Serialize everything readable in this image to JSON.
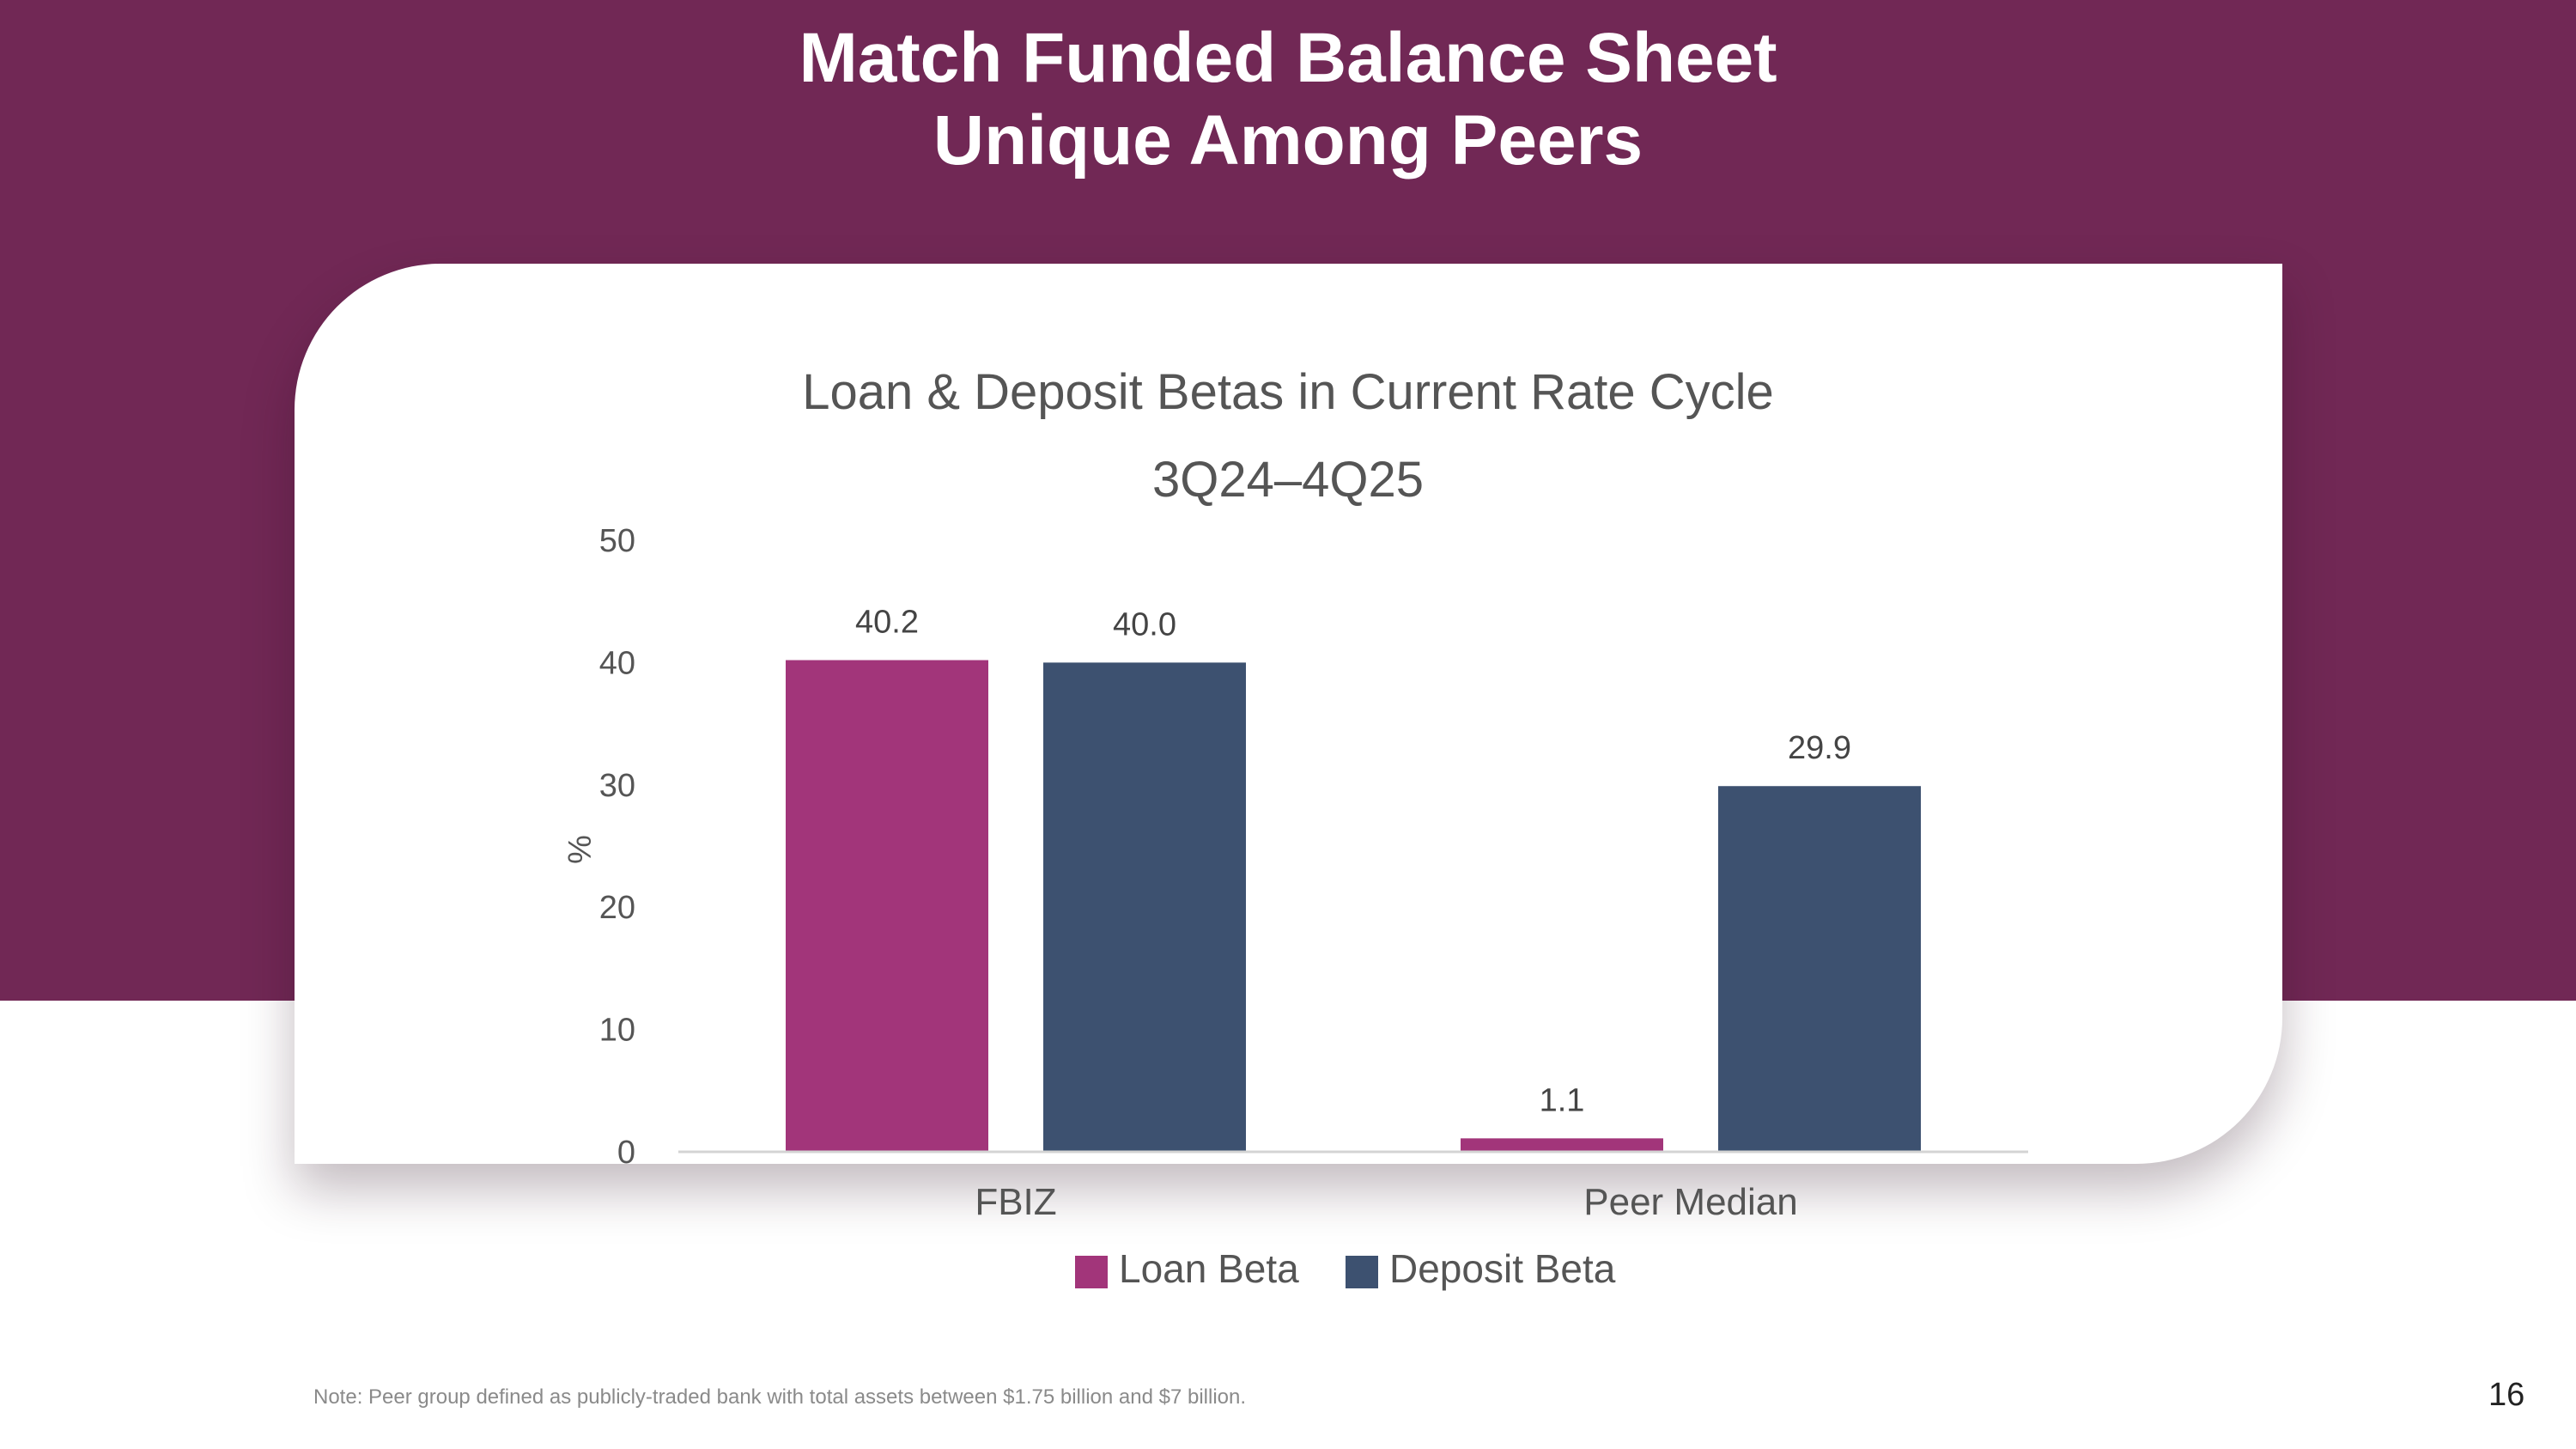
{
  "slide": {
    "title_line1": "Match Funded Balance Sheet",
    "title_line2": "Unique Among Peers",
    "note": "Note: Peer group defined as publicly-traded bank with total assets between $1.75 billion and $7 billion.",
    "page_number": "16",
    "background_color": "#712855"
  },
  "chart_data": {
    "type": "bar",
    "title": "Loan & Deposit Betas in Current Rate Cycle",
    "subtitle": "3Q24–4Q25",
    "ylabel": "%",
    "xlabel": "",
    "categories": [
      "FBIZ",
      "Peer Median"
    ],
    "series": [
      {
        "name": "Loan Beta",
        "color": "#A2357A",
        "values": [
          40.2,
          1.1
        ],
        "labels": [
          "40.2",
          "1.1"
        ]
      },
      {
        "name": "Deposit Beta",
        "color": "#3D5170",
        "values": [
          40.0,
          29.9
        ],
        "labels": [
          "40.0",
          "29.9"
        ]
      }
    ],
    "ylim": [
      0,
      50
    ],
    "yticks": [
      "0",
      "10",
      "20",
      "30",
      "40",
      "50"
    ],
    "grid": false,
    "legend_position": "bottom"
  }
}
